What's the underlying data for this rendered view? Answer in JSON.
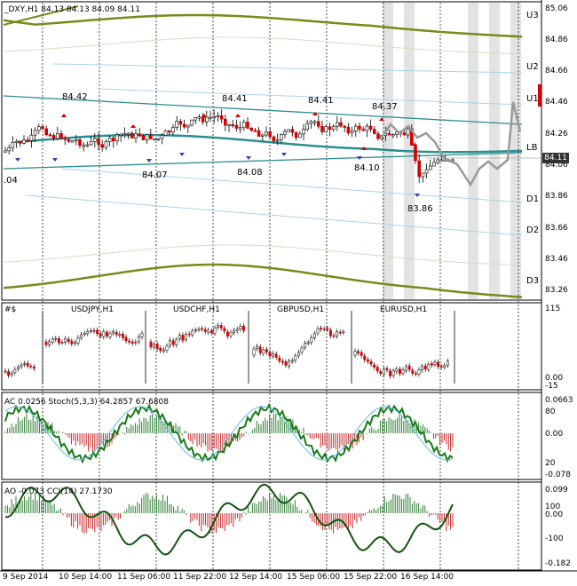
{
  "main": {
    "header": "_DXY,H1  84.13 84.13 84.09 84.11",
    "price_labels": [
      "85.06",
      "84.86",
      "84.66",
      "84.46",
      "84.26",
      "84.06",
      "83.86",
      "83.66",
      "83.46",
      "83.26"
    ],
    "current_price": "84.11",
    "levels": [
      "U3",
      "U2",
      "U1",
      "LB",
      "D1",
      "D2",
      "D3"
    ],
    "point_labels": [
      "84.42",
      "84.41",
      "84.41",
      "84.37",
      "84.07",
      "84.08",
      "84.10",
      "83.86",
      ".04"
    ],
    "colors": {
      "up": "#d40000",
      "down": "#d40000",
      "teal": "#2a8f8f",
      "olive": "#7a8a1a",
      "gray": "#999999"
    }
  },
  "symbols_panel": {
    "labels": [
      "#$",
      "USDJPY,H1",
      "USDCHF,H1",
      "GBPUSD,H1",
      "EURUSD,H1"
    ],
    "axis": [
      "115",
      "0.00",
      "-15"
    ]
  },
  "ac_panel": {
    "header": "AC 0.0256  Stoch(5,3,3) 64.2857 67.6808",
    "axis": [
      "0.0663",
      "80",
      "0.00",
      "20",
      "-0.078"
    ]
  },
  "ao_panel": {
    "header": "AO -0.073  CCI(14) 27.1730",
    "axis": [
      "0.099",
      "100",
      "0.00",
      "-100",
      "-0.182"
    ]
  },
  "time_axis": [
    "9 Sep 2014",
    "10 Sep 14:00",
    "11 Sep 06:00",
    "11 Sep 22:00",
    "12 Sep 14:00",
    "15 Sep 06:00",
    "15 Sep 22:00",
    "16 Sep 14:00"
  ]
}
